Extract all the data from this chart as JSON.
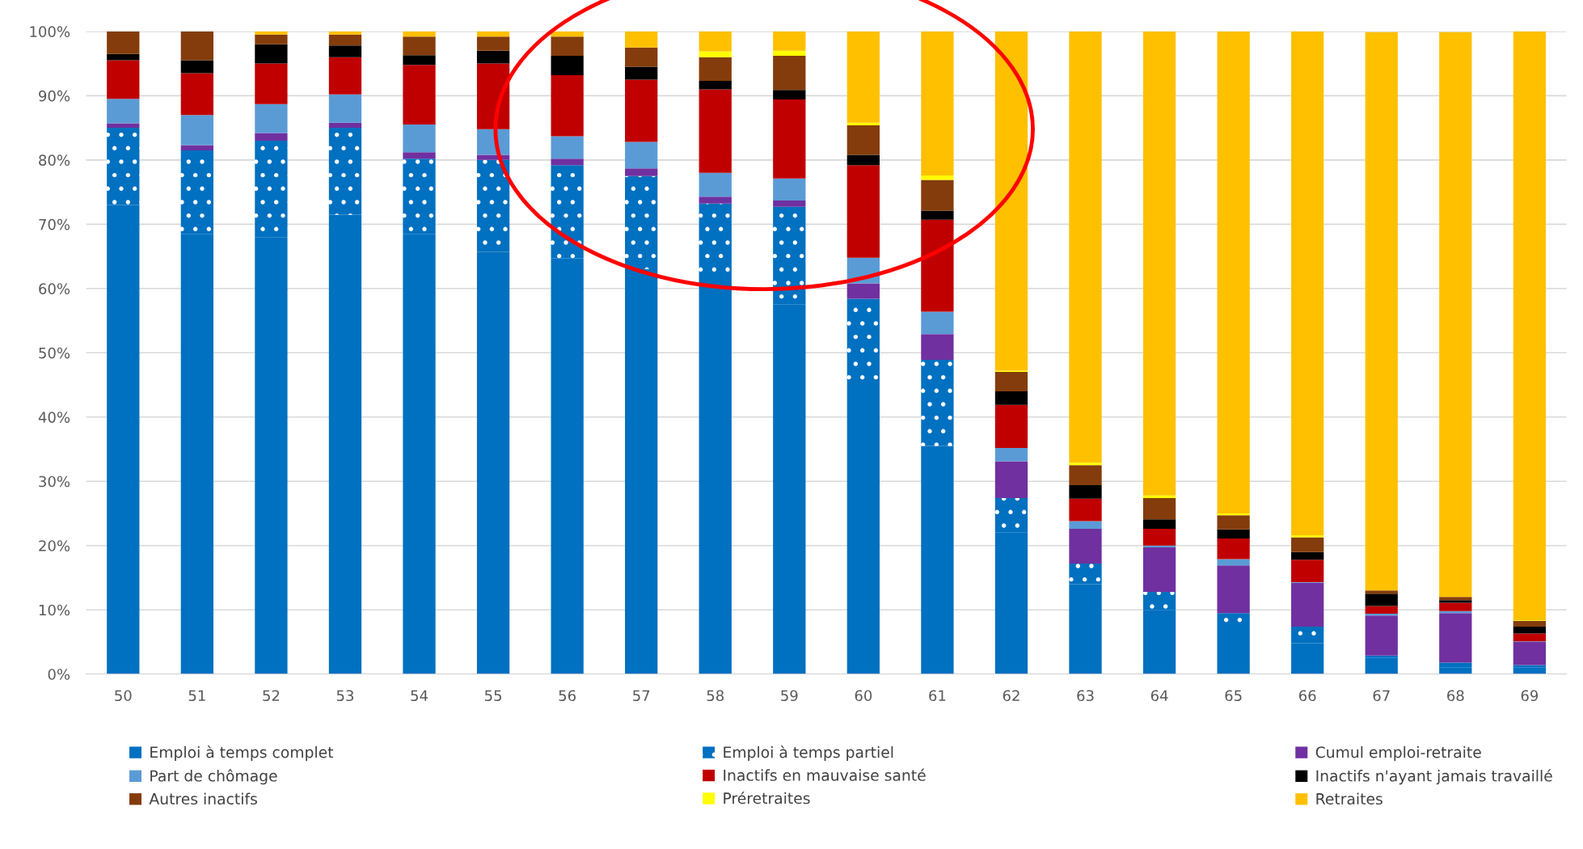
{
  "chart_data": {
    "type": "bar",
    "stacked": true,
    "categories": [
      "50",
      "51",
      "52",
      "53",
      "54",
      "55",
      "56",
      "57",
      "58",
      "59",
      "60",
      "61",
      "62",
      "63",
      "64",
      "65",
      "66",
      "67",
      "68",
      "69"
    ],
    "series": [
      {
        "name": "Emploi à temps complet",
        "color": "#0070c0",
        "values": [
          73,
          68.5,
          68,
          71.5,
          68.5,
          65.7,
          64.7,
          63,
          62,
          57.5,
          45,
          35.5,
          22,
          14,
          10,
          7,
          4.8,
          2.5,
          1,
          1
        ]
      },
      {
        "name": "Emploi à temps partiel",
        "color": "#0070c0",
        "marker": "circle",
        "values": [
          12,
          13,
          15,
          13.5,
          11.7,
          14.3,
          14.5,
          14.5,
          11.2,
          15.2,
          13.4,
          13.4,
          5.4,
          3.2,
          2.8,
          2.5,
          2.6,
          0.4,
          0.8,
          0.4
        ]
      },
      {
        "name": "Cumul emploi-retraite",
        "color": "#7030a0",
        "values": [
          0.7,
          0.8,
          1.2,
          0.8,
          1,
          0.8,
          1,
          1.2,
          1.1,
          1,
          2.4,
          4,
          5.7,
          5.4,
          6.9,
          7.4,
          6.8,
          6.2,
          7.7,
          3.6
        ]
      },
      {
        "name": "Part de chômage",
        "color": "#5b9bd5",
        "values": [
          3.8,
          4.7,
          4.5,
          4.4,
          4.3,
          4,
          3.5,
          4.1,
          3.7,
          3.4,
          4,
          3.5,
          2.1,
          1.2,
          0.3,
          1,
          0.1,
          0.3,
          0.3,
          0.1
        ]
      },
      {
        "name": "Inactifs en mauvaise santé",
        "color": "#c00000",
        "values": [
          6,
          6.5,
          6.3,
          5.8,
          9.3,
          10.2,
          9.5,
          9.7,
          13,
          12.3,
          14.4,
          14.3,
          6.7,
          3.5,
          2.6,
          3.2,
          3.5,
          1.2,
          1.3,
          1.2
        ]
      },
      {
        "name": "Inactifs n'ayant jamais travaillé",
        "color": "#000000",
        "values": [
          1,
          2,
          3,
          1.8,
          1.5,
          2,
          3,
          2,
          1.3,
          1.5,
          1.6,
          1.4,
          2.1,
          2.1,
          1.5,
          1.4,
          1.2,
          1.9,
          0.4,
          1.1
        ]
      },
      {
        "name": "Autres inactifs",
        "color": "#843c0c",
        "values": [
          3.5,
          4.5,
          1.5,
          1.7,
          2.9,
          2.2,
          3,
          3,
          3.7,
          5.3,
          4.6,
          4.8,
          3,
          3.1,
          3.3,
          2.2,
          2.3,
          0.5,
          0.5,
          0.9
        ]
      },
      {
        "name": "Préretraites",
        "color": "#ffff00",
        "values": [
          0,
          0,
          0,
          0,
          0,
          0,
          0,
          0,
          0.9,
          0.8,
          0.4,
          0.7,
          0.2,
          0.4,
          0.4,
          0.3,
          0.3,
          null,
          null,
          0.1
        ]
      },
      {
        "name": "Retraites",
        "color": "#ffc000",
        "values": [
          0,
          0,
          0.5,
          0.5,
          0.8,
          0.8,
          0.8,
          2.5,
          3.1,
          3,
          14.2,
          22.4,
          52.8,
          67.1,
          72.2,
          75,
          78.4,
          86.9,
          87.9,
          91.6
        ]
      }
    ],
    "ylim": [
      0,
      100
    ],
    "yticks": [
      {
        "value": 0,
        "label": "0%"
      },
      {
        "value": 10,
        "label": "10%"
      },
      {
        "value": 20,
        "label": "20%"
      },
      {
        "value": 30,
        "label": "30%"
      },
      {
        "value": 40,
        "label": "40%"
      },
      {
        "value": 50,
        "label": "50%"
      },
      {
        "value": 60,
        "label": "60%"
      },
      {
        "value": 70,
        "label": "70%"
      },
      {
        "value": 80,
        "label": "80%"
      },
      {
        "value": 90,
        "label": "90%"
      },
      {
        "value": 100,
        "label": "100%"
      }
    ],
    "grid": "y",
    "legend": "bottom"
  }
}
